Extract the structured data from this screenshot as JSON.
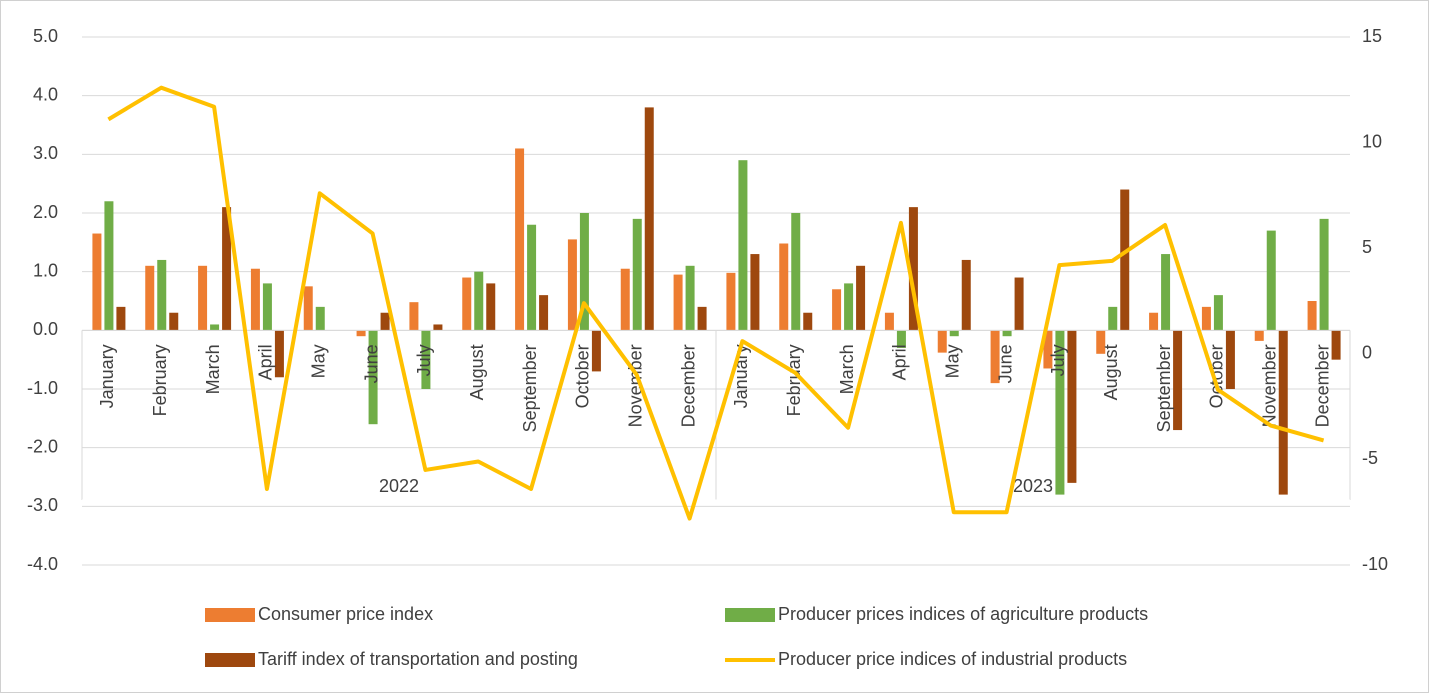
{
  "chart_data": {
    "type": "bar",
    "categories": [
      "January",
      "February",
      "March",
      "April",
      "May",
      "June",
      "July",
      "August",
      "September",
      "October",
      "November",
      "December",
      "January",
      "February",
      "March",
      "April",
      "May",
      "June",
      "July",
      "August",
      "September",
      "October",
      "November",
      "December"
    ],
    "x_groups": [
      "2022",
      "2023"
    ],
    "ylim": [
      -4,
      5
    ],
    "yticks": [
      {
        "value": -4,
        "label": "-4.0"
      },
      {
        "value": -3,
        "label": "-3.0"
      },
      {
        "value": -2,
        "label": "-2.0"
      },
      {
        "value": -1,
        "label": "-1.0"
      },
      {
        "value": 0,
        "label": "0.0"
      },
      {
        "value": 1,
        "label": "1.0"
      },
      {
        "value": 2,
        "label": "2.0"
      },
      {
        "value": 3,
        "label": "3.0"
      },
      {
        "value": 4,
        "label": "4.0"
      },
      {
        "value": 5,
        "label": "5.0"
      }
    ],
    "y2lim": [
      -10,
      15
    ],
    "y2ticks": [
      -10,
      -5,
      0,
      5,
      10,
      15
    ],
    "grid": true,
    "legend": "bottom",
    "series": [
      {
        "name": "Consumer price index",
        "color": "#ED7D31",
        "type": "bar",
        "values": [
          1.65,
          1.1,
          1.1,
          1.05,
          0.75,
          -0.1,
          0.48,
          0.9,
          3.1,
          1.55,
          1.05,
          0.95,
          0.98,
          1.48,
          0.7,
          0.3,
          -0.38,
          -0.9,
          -0.65,
          -0.4,
          0.3,
          0.4,
          -0.18,
          0.5
        ]
      },
      {
        "name": "Producer prices indices of agriculture products",
        "color": "#70AD47",
        "type": "bar",
        "values": [
          2.2,
          1.2,
          0.1,
          0.8,
          0.4,
          -1.6,
          -1.0,
          1.0,
          1.8,
          2.0,
          1.9,
          1.1,
          2.9,
          2.0,
          0.8,
          -0.3,
          -0.1,
          -0.1,
          -2.8,
          0.4,
          1.3,
          0.6,
          1.7,
          1.9
        ]
      },
      {
        "name": "Tariff index of transportation and posting",
        "color": "#9E480E",
        "type": "bar",
        "values": [
          0.4,
          0.3,
          2.1,
          -0.8,
          0,
          0.3,
          0.1,
          0.8,
          0.6,
          -0.7,
          3.8,
          0.4,
          1.3,
          0.3,
          1.1,
          2.1,
          1.2,
          0.9,
          -2.6,
          2.4,
          -1.7,
          -1.0,
          -2.8,
          -0.5
        ]
      },
      {
        "name": "Producer price indices of industrial products",
        "color": "#FFC000",
        "type": "line",
        "axis": "y2",
        "values": [
          11.1,
          12.6,
          11.7,
          -6.4,
          7.6,
          5.7,
          -5.5,
          -5.1,
          -6.4,
          2.4,
          -1.0,
          -7.8,
          0.6,
          -0.9,
          -3.5,
          6.2,
          -7.5,
          -7.5,
          4.2,
          4.4,
          6.1,
          -1.7,
          -3.4,
          -4.1
        ]
      }
    ]
  }
}
